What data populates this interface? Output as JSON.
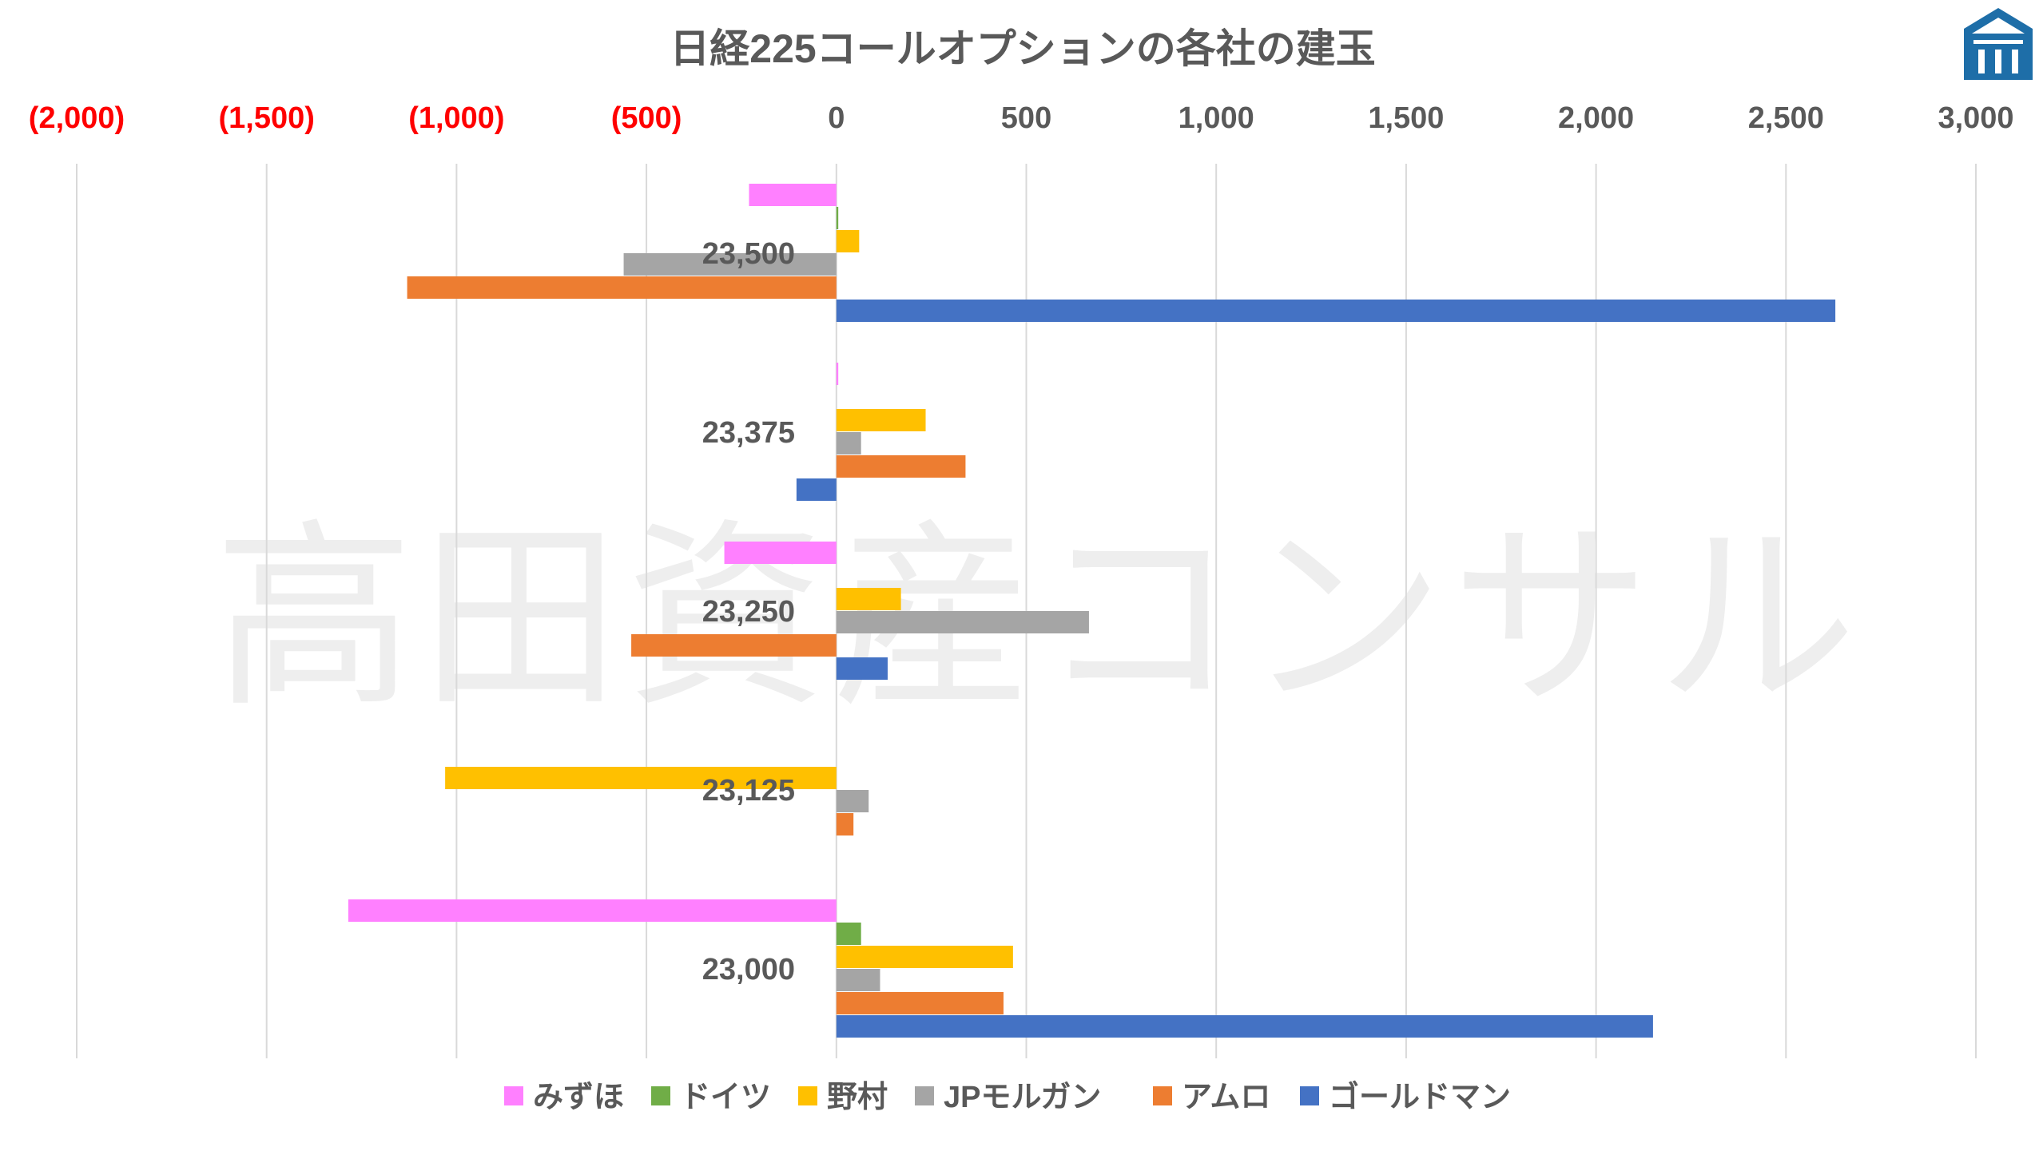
{
  "chart_data": {
    "type": "bar",
    "orientation": "horizontal",
    "title": "日経225コールオプションの各社の建玉",
    "watermark": "高田資産コンサル",
    "categories": [
      "23,500",
      "23,375",
      "23,250",
      "23,125",
      "23,000"
    ],
    "xlim": [
      -2000,
      3000
    ],
    "x_ticks": [
      {
        "value": -2000,
        "label": "(2,000)",
        "negative": true
      },
      {
        "value": -1500,
        "label": "(1,500)",
        "negative": true
      },
      {
        "value": -1000,
        "label": "(1,000)",
        "negative": true
      },
      {
        "value": -500,
        "label": "(500)",
        "negative": true
      },
      {
        "value": 0,
        "label": "0",
        "negative": false
      },
      {
        "value": 500,
        "label": "500",
        "negative": false
      },
      {
        "value": 1000,
        "label": "1,000",
        "negative": false
      },
      {
        "value": 1500,
        "label": "1,500",
        "negative": false
      },
      {
        "value": 2000,
        "label": "2,000",
        "negative": false
      },
      {
        "value": 2500,
        "label": "2,500",
        "negative": false
      },
      {
        "value": 3000,
        "label": "3,000",
        "negative": false
      }
    ],
    "axis_position": "top",
    "grid": true,
    "legend_position": "bottom",
    "series": [
      {
        "name": "みずほ",
        "color": "#FF80FF",
        "values": [
          -230,
          5,
          -295,
          0,
          -1285
        ]
      },
      {
        "name": "ドイツ",
        "color": "#70AD47",
        "values": [
          5,
          0,
          0,
          0,
          65
        ]
      },
      {
        "name": "野村",
        "color": "#FFC000",
        "values": [
          60,
          235,
          170,
          -1030,
          465
        ]
      },
      {
        "name": "JPモルガン",
        "color": "#A5A5A5",
        "values": [
          -560,
          65,
          665,
          85,
          115
        ]
      },
      {
        "name": "アムロ",
        "color": "#ED7D31",
        "values": [
          -1130,
          340,
          -540,
          45,
          440
        ]
      },
      {
        "name": "ゴールドマン",
        "color": "#4472C4",
        "values": [
          2630,
          -105,
          135,
          0,
          2150
        ]
      }
    ],
    "colors": {
      "negative_tick": "#FF0000",
      "positive_tick": "#595959",
      "gridline": "#d9d9d9",
      "logo": "#1e6ea8"
    }
  },
  "logo": {
    "icon": "building-logo-icon"
  }
}
